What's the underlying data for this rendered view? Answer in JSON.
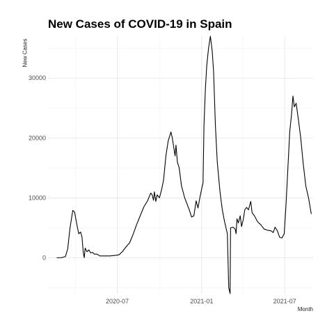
{
  "chart_data": {
    "type": "line",
    "title": "New Cases of COVID-19 in Spain",
    "xlabel": "Month",
    "ylabel": "New Cases",
    "x_ticks": [
      "2020-07",
      "2021-01",
      "2021-07"
    ],
    "y_ticks": [
      "0",
      "10000",
      "20000",
      "30000"
    ],
    "xlim": [
      "2020-02-01",
      "2021-09-01"
    ],
    "ylim": [
      -6000,
      37000
    ],
    "grid": true,
    "series": [
      {
        "color": "#000000",
        "points": [
          [
            "2020-02-20",
            0
          ],
          [
            "2020-03-01",
            0
          ],
          [
            "2020-03-10",
            200
          ],
          [
            "2020-03-15",
            1500
          ],
          [
            "2020-03-20",
            5000
          ],
          [
            "2020-03-26",
            7900
          ],
          [
            "2020-03-30",
            7600
          ],
          [
            "2020-04-04",
            5500
          ],
          [
            "2020-04-08",
            4000
          ],
          [
            "2020-04-12",
            4300
          ],
          [
            "2020-04-15",
            3500
          ],
          [
            "2020-04-18",
            800
          ],
          [
            "2020-04-20",
            0
          ],
          [
            "2020-04-22",
            1600
          ],
          [
            "2020-04-26",
            1000
          ],
          [
            "2020-04-30",
            1300
          ],
          [
            "2020-05-04",
            800
          ],
          [
            "2020-05-08",
            900
          ],
          [
            "2020-05-12",
            600
          ],
          [
            "2020-05-18",
            600
          ],
          [
            "2020-05-24",
            300
          ],
          [
            "2020-06-01",
            300
          ],
          [
            "2020-06-15",
            300
          ],
          [
            "2020-06-28",
            400
          ],
          [
            "2020-07-05",
            500
          ],
          [
            "2020-07-12",
            1000
          ],
          [
            "2020-07-20",
            1800
          ],
          [
            "2020-07-28",
            2500
          ],
          [
            "2020-08-05",
            4000
          ],
          [
            "2020-08-12",
            5500
          ],
          [
            "2020-08-20",
            7000
          ],
          [
            "2020-08-28",
            8500
          ],
          [
            "2020-09-05",
            9500
          ],
          [
            "2020-09-12",
            10800
          ],
          [
            "2020-09-15",
            10500
          ],
          [
            "2020-09-18",
            9600
          ],
          [
            "2020-09-20",
            11000
          ],
          [
            "2020-09-23",
            9400
          ],
          [
            "2020-09-26",
            10500
          ],
          [
            "2020-10-01",
            10000
          ],
          [
            "2020-10-06",
            11500
          ],
          [
            "2020-10-10",
            13000
          ],
          [
            "2020-10-15",
            17000
          ],
          [
            "2020-10-20",
            19500
          ],
          [
            "2020-10-26",
            21000
          ],
          [
            "2020-10-29",
            20000
          ],
          [
            "2020-11-01",
            18500
          ],
          [
            "2020-11-04",
            17000
          ],
          [
            "2020-11-06",
            18800
          ],
          [
            "2020-11-09",
            16000
          ],
          [
            "2020-11-13",
            15000
          ],
          [
            "2020-11-18",
            12000
          ],
          [
            "2020-11-25",
            10000
          ],
          [
            "2020-11-30",
            9000
          ],
          [
            "2020-12-05",
            8000
          ],
          [
            "2020-12-10",
            6800
          ],
          [
            "2020-12-15",
            7000
          ],
          [
            "2020-12-20",
            9500
          ],
          [
            "2020-12-24",
            8300
          ],
          [
            "2020-12-28",
            10000
          ],
          [
            "2021-01-01",
            11500
          ],
          [
            "2021-01-04",
            12500
          ],
          [
            "2021-01-06",
            22000
          ],
          [
            "2021-01-09",
            28000
          ],
          [
            "2021-01-12",
            32000
          ],
          [
            "2021-01-16",
            35000
          ],
          [
            "2021-01-20",
            37000
          ],
          [
            "2021-01-24",
            34500
          ],
          [
            "2021-01-27",
            31000
          ],
          [
            "2021-01-31",
            22000
          ],
          [
            "2021-02-04",
            16000
          ],
          [
            "2021-02-10",
            11000
          ],
          [
            "2021-02-15",
            8000
          ],
          [
            "2021-02-20",
            6000
          ],
          [
            "2021-02-26",
            4000
          ],
          [
            "2021-03-01",
            -5000
          ],
          [
            "2021-03-04",
            -6000
          ],
          [
            "2021-03-05",
            5000
          ],
          [
            "2021-03-10",
            5100
          ],
          [
            "2021-03-15",
            4800
          ],
          [
            "2021-03-17",
            4000
          ],
          [
            "2021-03-19",
            6500
          ],
          [
            "2021-03-22",
            5800
          ],
          [
            "2021-03-26",
            7000
          ],
          [
            "2021-03-29",
            5200
          ],
          [
            "2021-04-02",
            6500
          ],
          [
            "2021-04-05",
            8000
          ],
          [
            "2021-04-09",
            8400
          ],
          [
            "2021-04-13",
            8000
          ],
          [
            "2021-04-18",
            9400
          ],
          [
            "2021-04-21",
            7500
          ],
          [
            "2021-04-26",
            7000
          ],
          [
            "2021-05-03",
            6000
          ],
          [
            "2021-05-10",
            5500
          ],
          [
            "2021-05-17",
            4800
          ],
          [
            "2021-05-24",
            4600
          ],
          [
            "2021-06-01",
            4500
          ],
          [
            "2021-06-06",
            4200
          ],
          [
            "2021-06-10",
            5100
          ],
          [
            "2021-06-15",
            4500
          ],
          [
            "2021-06-20",
            3400
          ],
          [
            "2021-06-25",
            3300
          ],
          [
            "2021-06-30",
            4000
          ],
          [
            "2021-07-04",
            9000
          ],
          [
            "2021-07-08",
            15000
          ],
          [
            "2021-07-12",
            21000
          ],
          [
            "2021-07-16",
            24000
          ],
          [
            "2021-07-19",
            27000
          ],
          [
            "2021-07-22",
            25200
          ],
          [
            "2021-07-26",
            25800
          ],
          [
            "2021-07-31",
            23000
          ],
          [
            "2021-08-05",
            20000
          ],
          [
            "2021-08-10",
            16000
          ],
          [
            "2021-08-16",
            12000
          ],
          [
            "2021-08-22",
            10000
          ],
          [
            "2021-08-28",
            7300
          ]
        ]
      }
    ]
  }
}
